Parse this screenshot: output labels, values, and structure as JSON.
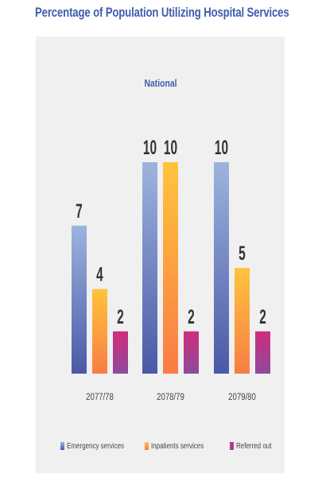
{
  "chart_data": {
    "type": "bar",
    "title": "Percentage of Population Utilizing Hospital Services",
    "subtitle": "National",
    "categories": [
      "2077/78",
      "2078/79",
      "2079/80"
    ],
    "series": [
      {
        "name": "Emergency services",
        "values": [
          7,
          10,
          10
        ],
        "color_top": "#9db4de",
        "color_bottom": "#4a59a6"
      },
      {
        "name": "Inpatients services",
        "values": [
          4,
          10,
          5
        ],
        "color_top": "#ffc43d",
        "color_bottom": "#f97c45"
      },
      {
        "name": "Referred out",
        "values": [
          2,
          2,
          2
        ],
        "color_top": "#d02d7c",
        "color_bottom": "#8d4b9b"
      }
    ],
    "data_labels": [
      [
        "7",
        "10",
        "10"
      ],
      [
        "4",
        "10",
        "5"
      ],
      [
        "2",
        "2",
        "2"
      ]
    ],
    "grid": false,
    "legend_position": "bottom"
  },
  "colors": {
    "title": "#3f5eae",
    "subtitle": "#3f5eae",
    "panel_background": "#f0f0f0",
    "data_label": "#333333",
    "tick_label": "#444444"
  }
}
